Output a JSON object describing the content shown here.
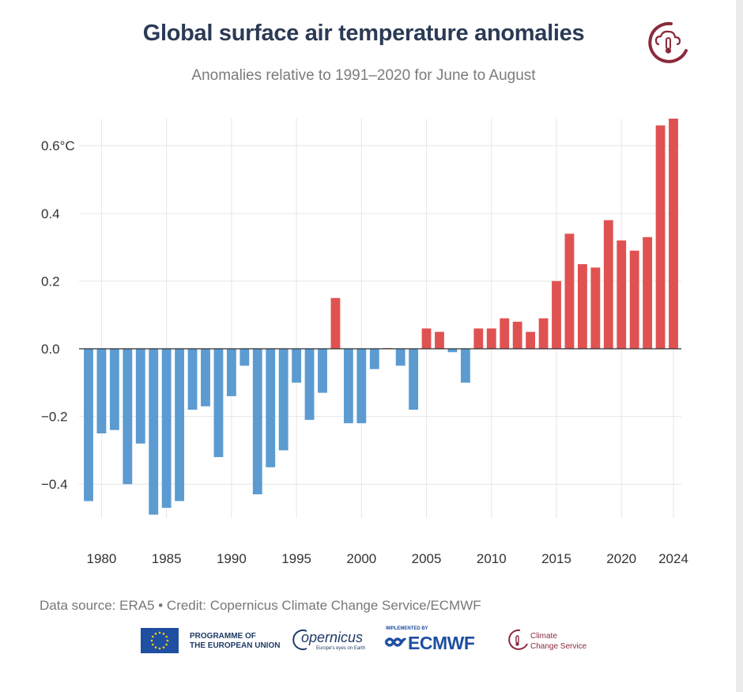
{
  "title": "Global surface air temperature anomalies",
  "subtitle": "Anomalies relative to 1991–2020 for June to August",
  "source": "Data source: ERA5 • Credit: Copernicus Climate Change Service/ECMWF",
  "footer": {
    "eu_line1": "PROGRAMME OF",
    "eu_line2": "THE EUROPEAN UNION",
    "copernicus_word": "opernicus",
    "copernicus_tagline": "Europe's eyes on Earth",
    "ecmwf_implemented": "IMPLEMENTED BY",
    "ecmwf_word": "ECMWF",
    "c3s_line1": "Climate",
    "c3s_line2": "Change Service"
  },
  "colors": {
    "positive": "#e05252",
    "negative": "#5b9bd1",
    "title": "#2b3a55",
    "brand": "#8b2a3c",
    "eu_flag": "#1f4fa0",
    "eu_star": "#ffd200"
  },
  "icons": [
    "c3s-thermometer-cloud-logo",
    "eu-flag",
    "copernicus-logo",
    "ecmwf-logo",
    "c3s-logo"
  ],
  "chart_data": {
    "type": "bar",
    "ylim": [
      -0.5,
      0.68
    ],
    "yticks": [
      -0.4,
      -0.2,
      0.0,
      0.2,
      0.4,
      0.6
    ],
    "ytick_labels": [
      "−0.4",
      "−0.2",
      "0.0",
      "0.2",
      "0.4",
      "0.6°C"
    ],
    "xticks": [
      1980,
      1985,
      1990,
      1995,
      2000,
      2005,
      2010,
      2015,
      2020,
      2024
    ],
    "xtick_labels": [
      "1980",
      "1985",
      "1990",
      "1995",
      "2000",
      "2005",
      "2010",
      "2015",
      "2020",
      "2024"
    ],
    "grid": true,
    "x": [
      1979,
      1980,
      1981,
      1982,
      1983,
      1984,
      1985,
      1986,
      1987,
      1988,
      1989,
      1990,
      1991,
      1992,
      1993,
      1994,
      1995,
      1996,
      1997,
      1998,
      1999,
      2000,
      2001,
      2002,
      2003,
      2004,
      2005,
      2006,
      2007,
      2008,
      2009,
      2010,
      2011,
      2012,
      2013,
      2014,
      2015,
      2016,
      2017,
      2018,
      2019,
      2020,
      2021,
      2022,
      2023,
      2024
    ],
    "values": [
      -0.45,
      -0.25,
      -0.24,
      -0.4,
      -0.28,
      -0.49,
      -0.47,
      -0.45,
      -0.18,
      -0.17,
      -0.32,
      -0.14,
      -0.05,
      -0.43,
      -0.35,
      -0.3,
      -0.1,
      -0.21,
      -0.13,
      0.15,
      -0.22,
      -0.22,
      -0.06,
      0.002,
      -0.05,
      -0.18,
      0.06,
      0.05,
      -0.01,
      -0.1,
      0.06,
      0.06,
      0.09,
      0.08,
      0.05,
      0.09,
      0.2,
      0.34,
      0.25,
      0.24,
      0.38,
      0.32,
      0.29,
      0.33,
      0.66,
      0.68
    ]
  }
}
